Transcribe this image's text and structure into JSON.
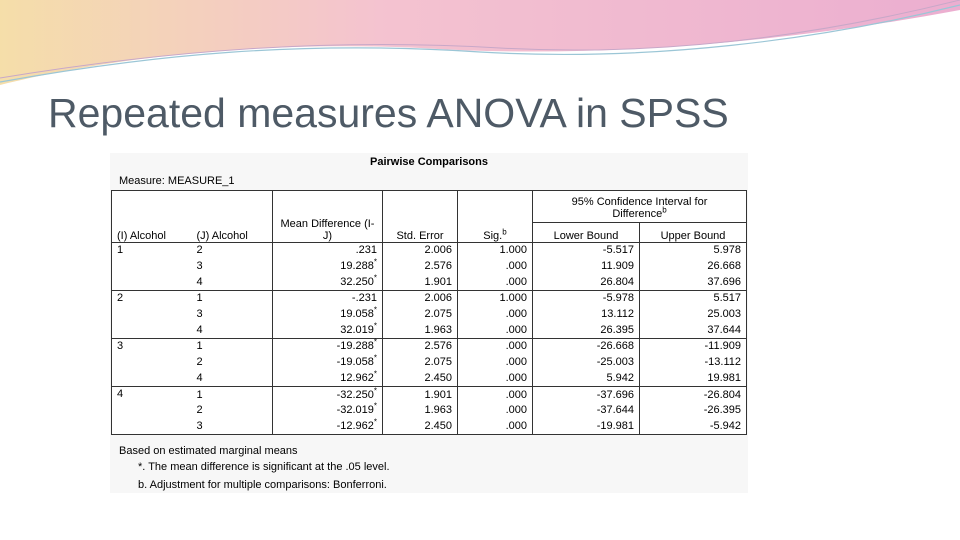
{
  "title": "Repeated measures ANOVA in SPSS",
  "table": {
    "caption": "Pairwise Comparisons",
    "measure": "Measure: MEASURE_1",
    "headers": {
      "i": "(I) Alcohol",
      "j": "(J) Alcohol",
      "mean": "Mean Difference (I-J)",
      "se": "Std. Error",
      "sig": "Sig.",
      "sig_sup": "b",
      "ci": "95% Confidence Interval for Difference",
      "ci_sup": "b",
      "lower": "Lower Bound",
      "upper": "Upper Bound"
    },
    "groups": [
      {
        "i": "1",
        "rows": [
          {
            "j": "2",
            "mean": ".231",
            "se": "2.006",
            "sig": "1.000",
            "lower": "-5.517",
            "upper": "5.978"
          },
          {
            "j": "3",
            "mean": "19.288",
            "mark": "*",
            "se": "2.576",
            "sig": ".000",
            "lower": "11.909",
            "upper": "26.668"
          },
          {
            "j": "4",
            "mean": "32.250",
            "mark": "*",
            "se": "1.901",
            "sig": ".000",
            "lower": "26.804",
            "upper": "37.696"
          }
        ]
      },
      {
        "i": "2",
        "rows": [
          {
            "j": "1",
            "mean": "-.231",
            "se": "2.006",
            "sig": "1.000",
            "lower": "-5.978",
            "upper": "5.517"
          },
          {
            "j": "3",
            "mean": "19.058",
            "mark": "*",
            "se": "2.075",
            "sig": ".000",
            "lower": "13.112",
            "upper": "25.003"
          },
          {
            "j": "4",
            "mean": "32.019",
            "mark": "*",
            "se": "1.963",
            "sig": ".000",
            "lower": "26.395",
            "upper": "37.644"
          }
        ]
      },
      {
        "i": "3",
        "rows": [
          {
            "j": "1",
            "mean": "-19.288",
            "mark": "*",
            "se": "2.576",
            "sig": ".000",
            "lower": "-26.668",
            "upper": "-11.909"
          },
          {
            "j": "2",
            "mean": "-19.058",
            "mark": "*",
            "se": "2.075",
            "sig": ".000",
            "lower": "-25.003",
            "upper": "-13.112"
          },
          {
            "j": "4",
            "mean": "12.962",
            "mark": "*",
            "se": "2.450",
            "sig": ".000",
            "lower": "5.942",
            "upper": "19.981"
          }
        ]
      },
      {
        "i": "4",
        "rows": [
          {
            "j": "1",
            "mean": "-32.250",
            "mark": "*",
            "se": "1.901",
            "sig": ".000",
            "lower": "-37.696",
            "upper": "-26.804"
          },
          {
            "j": "2",
            "mean": "-32.019",
            "mark": "*",
            "se": "1.963",
            "sig": ".000",
            "lower": "-37.644",
            "upper": "-26.395"
          },
          {
            "j": "3",
            "mean": "-12.962",
            "mark": "*",
            "se": "2.450",
            "sig": ".000",
            "lower": "-19.981",
            "upper": "-5.942"
          }
        ]
      }
    ],
    "footnotes": [
      "Based on estimated marginal means",
      "*. The mean difference is significant at the .05 level.",
      "b. Adjustment for multiple comparisons: Bonferroni."
    ]
  }
}
